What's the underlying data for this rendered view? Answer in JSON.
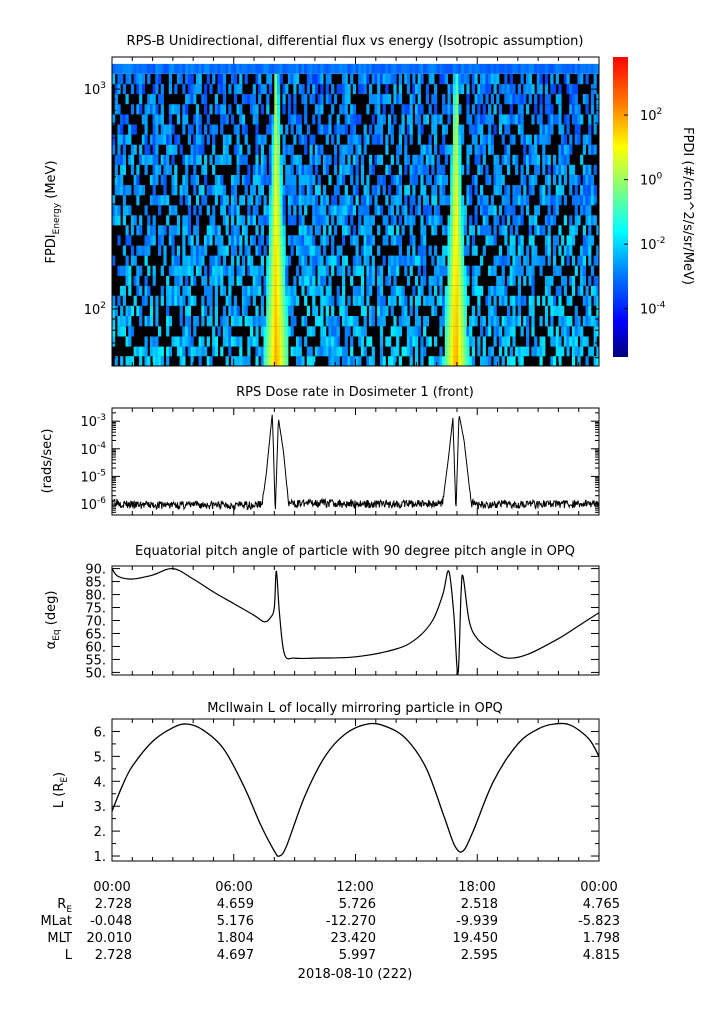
{
  "figure": {
    "date_label": "2018-08-10 (222)"
  },
  "colors": {
    "background": "#ffffff",
    "axis": "#000000",
    "trace": "#000000",
    "colormap": [
      "#00007f",
      "#0000ff",
      "#007fff",
      "#00ffff",
      "#7fff7f",
      "#ffff00",
      "#ff7f00",
      "#ff0000"
    ]
  },
  "chart_data": [
    {
      "id": "spectrogram",
      "type": "heatmap",
      "title": "RPS-B  Unidirectional, differential flux vs energy (Isotropic assumption)",
      "ylabel_main": "FPDI",
      "ylabel_sub": "Energy",
      "ylabel_unit": " (MeV)",
      "yscale": "log",
      "ylim": [
        55,
        1400
      ],
      "yticks": [
        {
          "value": 100,
          "base": "10",
          "exp": "2"
        },
        {
          "value": 1000,
          "base": "10",
          "exp": "3"
        }
      ],
      "xlim_hours": [
        0,
        24
      ],
      "energy_channels_mev": [
        58,
        64,
        71,
        79,
        88,
        98,
        109,
        121,
        134,
        149,
        166,
        184,
        205,
        228,
        253,
        281,
        312,
        347,
        386,
        429,
        477,
        530,
        589,
        655,
        728,
        809,
        900,
        1000,
        1110,
        1240
      ],
      "belt_crossings_hours": [
        8.1,
        16.95
      ],
      "colorbar": {
        "label": "FPDI (#/cm^2/s/sr/MeV)",
        "scale": "log",
        "range_exp": [
          -5.5,
          3.8
        ],
        "ticks": [
          {
            "base": "10",
            "exp": "2",
            "value_exp": 2
          },
          {
            "base": "10",
            "exp": "0",
            "value_exp": 0
          },
          {
            "base": "10",
            "exp": "-2",
            "value_exp": -2
          },
          {
            "base": "10",
            "exp": "-4",
            "value_exp": -4
          }
        ]
      }
    },
    {
      "id": "dose",
      "type": "line",
      "title": "RPS  Dose rate in Dosimeter 1 (front)",
      "ylabel": "(rads/sec)",
      "yscale": "log",
      "ylim": [
        4e-07,
        0.003
      ],
      "yticks": [
        {
          "value": 1e-06,
          "base": "10",
          "exp": "-6"
        },
        {
          "value": 1e-05,
          "base": "10",
          "exp": "-5"
        },
        {
          "value": 0.0001,
          "base": "10",
          "exp": "-4"
        },
        {
          "value": 0.001,
          "base": "10",
          "exp": "-3"
        }
      ],
      "x_hours": [
        0,
        0.5,
        1,
        2,
        3,
        4,
        5,
        6,
        7,
        7.4,
        7.6,
        7.9,
        8.05,
        8.2,
        8.45,
        8.7,
        9,
        10,
        12,
        14,
        16,
        16.3,
        16.55,
        16.8,
        16.95,
        17.1,
        17.35,
        17.7,
        18,
        20,
        22,
        24
      ],
      "values": [
        1.4e-06,
        1e-06,
        9e-07,
        9e-07,
        9e-07,
        9e-07,
        9e-07,
        9e-07,
        9e-07,
        1e-06,
        1.2e-05,
        0.0019,
        5e-07,
        0.0013,
        8e-05,
        1e-06,
        1e-06,
        1.1e-06,
        1e-06,
        1e-06,
        1e-06,
        1.2e-06,
        3e-05,
        0.0013,
        5e-07,
        0.0018,
        0.0002,
        1.1e-06,
        9e-07,
        1e-06,
        1e-06,
        1e-06
      ]
    },
    {
      "id": "pitch",
      "type": "line",
      "title": "Equatorial pitch angle of particle with 90 degree pitch angle in OPQ",
      "ylabel_main": "α",
      "ylabel_sub": "Eq",
      "ylabel_unit": " (deg)",
      "ylim": [
        49,
        91
      ],
      "yticks": [
        50,
        55,
        60,
        65,
        70,
        75,
        80,
        85,
        90
      ],
      "x_hours": [
        0,
        0.3,
        1,
        2,
        3,
        4,
        5,
        6,
        7,
        7.5,
        7.8,
        8.0,
        8.1,
        8.25,
        8.5,
        9,
        10,
        12,
        14,
        15,
        15.8,
        16.3,
        16.6,
        16.85,
        17.05,
        17.2,
        17.3,
        17.6,
        18,
        18.8,
        19.5,
        20.5,
        22,
        23,
        24
      ],
      "values": [
        90,
        87,
        86,
        87.5,
        90,
        86,
        81,
        76.5,
        72,
        69.5,
        71,
        75,
        89,
        73,
        57,
        55.5,
        55.5,
        56,
        59,
        63,
        70,
        80,
        89,
        72,
        49.5,
        80,
        87,
        70,
        63,
        58,
        55.5,
        57,
        63,
        68,
        73
      ]
    },
    {
      "id": "lshell",
      "type": "line",
      "title": "McIlwain L of locally mirroring particle in OPQ",
      "ylabel_main": "L (R",
      "ylabel_sub": "E",
      "ylabel_unit": ")",
      "ylim": [
        0.8,
        6.5
      ],
      "yticks": [
        1,
        2,
        3,
        4,
        5,
        6
      ],
      "x_hours": [
        0,
        0.5,
        1,
        2,
        3,
        3.7,
        4.5,
        5.5,
        6.5,
        7.3,
        8.0,
        8.25,
        8.6,
        9.5,
        10.5,
        11.5,
        12.6,
        13.5,
        14.5,
        15.5,
        16.4,
        16.9,
        17.3,
        17.8,
        18.8,
        20,
        21,
        21.8,
        22.6,
        23.5,
        24
      ],
      "values": [
        2.8,
        3.8,
        4.6,
        5.6,
        6.15,
        6.3,
        6.05,
        5.3,
        3.8,
        2.3,
        1.2,
        1.0,
        1.4,
        3.4,
        5.0,
        5.9,
        6.3,
        6.2,
        5.7,
        4.5,
        2.5,
        1.4,
        1.2,
        2.0,
        4.0,
        5.5,
        6.1,
        6.3,
        6.25,
        5.7,
        5.0
      ]
    }
  ],
  "x_axis": {
    "time_labels": [
      "00:00",
      "06:00",
      "12:00",
      "18:00",
      "00:00"
    ],
    "tick_hours": [
      0,
      6,
      12,
      18,
      24
    ],
    "minor_step_hours": 1
  },
  "ephemeris": {
    "rows": [
      {
        "label_main": "R",
        "label_sub": "E",
        "values": [
          "2.728",
          "4.659",
          "5.726",
          "2.518",
          "4.765"
        ]
      },
      {
        "label_main": "MLat",
        "label_sub": "",
        "values": [
          "-0.048",
          "5.176",
          "-12.270",
          "-9.939",
          "-5.823"
        ]
      },
      {
        "label_main": "MLT",
        "label_sub": "",
        "values": [
          "20.010",
          "1.804",
          "23.420",
          "19.450",
          "1.798"
        ]
      },
      {
        "label_main": "L",
        "label_sub": "",
        "values": [
          "2.728",
          "4.697",
          "5.997",
          "2.595",
          "4.815"
        ]
      }
    ]
  }
}
